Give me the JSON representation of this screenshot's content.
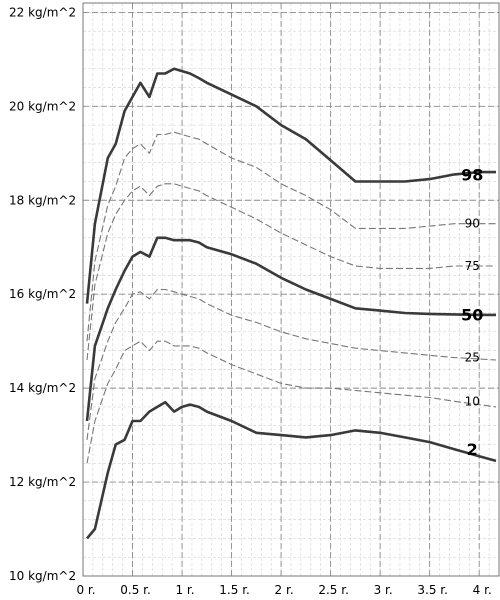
{
  "chart_data": {
    "type": "line",
    "title": "",
    "xlabel": "",
    "ylabel": "",
    "xlim": [
      0,
      4.2
    ],
    "ylim": [
      10,
      22.2
    ],
    "x_unit": "r.",
    "y_unit": "kg/m^2",
    "x_ticks": [
      {
        "value": 0,
        "label": "0 r."
      },
      {
        "value": 0.5,
        "label": "0.5 r."
      },
      {
        "value": 1,
        "label": "1 r."
      },
      {
        "value": 1.5,
        "label": "1.5 r."
      },
      {
        "value": 2,
        "label": "2 r."
      },
      {
        "value": 2.5,
        "label": "2.5 r."
      },
      {
        "value": 3,
        "label": "3 r."
      },
      {
        "value": 3.5,
        "label": "3.5 r."
      },
      {
        "value": 4,
        "label": "4 r."
      }
    ],
    "y_ticks": [
      {
        "value": 10,
        "label": "10 kg/m^2"
      },
      {
        "value": 12,
        "label": "12 kg/m^2"
      },
      {
        "value": 14,
        "label": "14 kg/m^2"
      },
      {
        "value": 16,
        "label": "16 kg/m^2"
      },
      {
        "value": 18,
        "label": "18 kg/m^2"
      },
      {
        "value": 20,
        "label": "20 kg/m^2"
      },
      {
        "value": 22,
        "label": "22 kg/m^2"
      }
    ],
    "grid": true,
    "x": [
      0.04,
      0.12,
      0.25,
      0.33,
      0.42,
      0.5,
      0.58,
      0.67,
      0.75,
      0.83,
      0.92,
      1.0,
      1.08,
      1.17,
      1.25,
      1.5,
      1.75,
      2.0,
      2.25,
      2.5,
      2.75,
      3.0,
      3.25,
      3.5,
      3.75,
      4.0,
      4.17
    ],
    "series": [
      {
        "name": "98",
        "style": "bold",
        "values": [
          15.8,
          17.5,
          18.9,
          19.2,
          19.9,
          20.2,
          20.5,
          20.2,
          20.7,
          20.7,
          20.8,
          20.75,
          20.7,
          20.6,
          20.5,
          20.25,
          20.0,
          19.6,
          19.3,
          18.85,
          18.4,
          18.4,
          18.4,
          18.45,
          18.55,
          18.6,
          18.6
        ]
      },
      {
        "name": "90",
        "style": "thin",
        "values": [
          15.0,
          16.7,
          17.9,
          18.3,
          18.9,
          19.1,
          19.2,
          19.0,
          19.4,
          19.4,
          19.45,
          19.4,
          19.35,
          19.3,
          19.2,
          18.9,
          18.7,
          18.35,
          18.1,
          17.8,
          17.4,
          17.4,
          17.4,
          17.45,
          17.5,
          17.5,
          17.5
        ]
      },
      {
        "name": "75",
        "style": "thin",
        "values": [
          14.6,
          16.2,
          17.3,
          17.7,
          18.0,
          18.2,
          18.3,
          18.1,
          18.3,
          18.35,
          18.35,
          18.3,
          18.25,
          18.2,
          18.1,
          17.85,
          17.6,
          17.3,
          17.05,
          16.8,
          16.6,
          16.55,
          16.55,
          16.55,
          16.6,
          16.6,
          16.6
        ]
      },
      {
        "name": "50",
        "style": "bold",
        "values": [
          13.3,
          14.9,
          15.7,
          16.1,
          16.5,
          16.8,
          16.9,
          16.8,
          17.2,
          17.2,
          17.15,
          17.15,
          17.15,
          17.1,
          17.0,
          16.85,
          16.65,
          16.35,
          16.1,
          15.9,
          15.7,
          15.65,
          15.6,
          15.58,
          15.57,
          15.56,
          15.56
        ]
      },
      {
        "name": "25",
        "style": "thin",
        "values": [
          12.9,
          14.2,
          15.0,
          15.4,
          15.7,
          16.0,
          16.05,
          15.9,
          16.1,
          16.1,
          16.05,
          16.0,
          15.95,
          15.9,
          15.8,
          15.55,
          15.4,
          15.2,
          15.05,
          14.95,
          14.85,
          14.8,
          14.75,
          14.7,
          14.65,
          14.62,
          14.6
        ]
      },
      {
        "name": "10",
        "style": "thin",
        "values": [
          12.4,
          13.3,
          14.1,
          14.4,
          14.8,
          14.9,
          15.0,
          14.8,
          15.0,
          15.0,
          14.9,
          14.9,
          14.9,
          14.85,
          14.75,
          14.5,
          14.3,
          14.1,
          14.0,
          14.0,
          13.95,
          13.9,
          13.85,
          13.8,
          13.72,
          13.65,
          13.6
        ]
      },
      {
        "name": "2",
        "style": "bold",
        "values": [
          10.8,
          11.0,
          12.2,
          12.8,
          12.9,
          13.3,
          13.3,
          13.5,
          13.6,
          13.7,
          13.5,
          13.6,
          13.65,
          13.6,
          13.5,
          13.3,
          13.05,
          13.0,
          12.95,
          13.0,
          13.1,
          13.05,
          12.95,
          12.85,
          12.7,
          12.55,
          12.45
        ]
      }
    ]
  }
}
